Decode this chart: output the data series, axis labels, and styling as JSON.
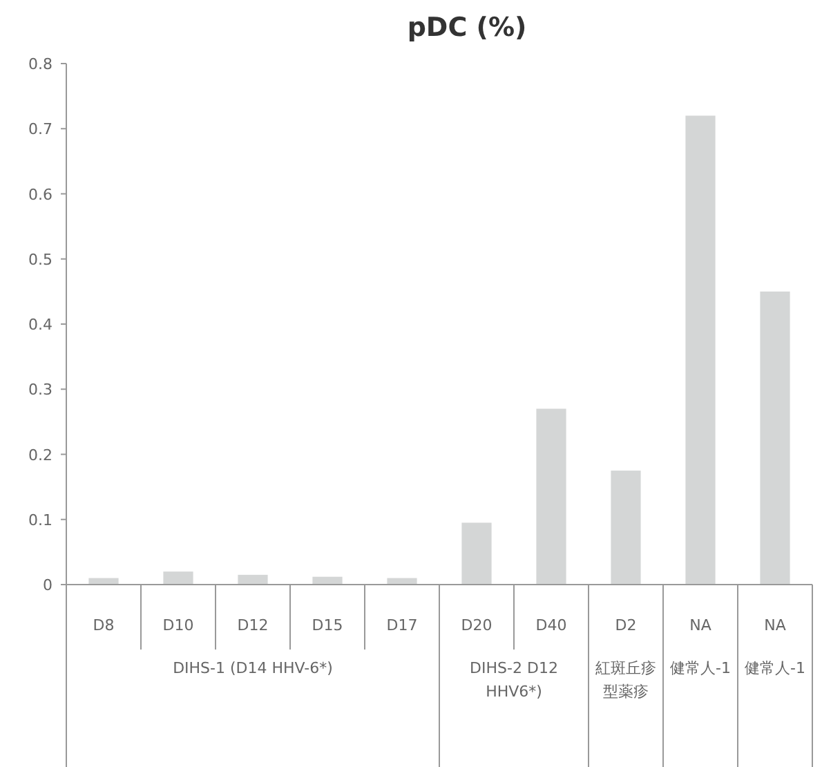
{
  "chart_data": {
    "type": "bar",
    "title": "pDC (%)",
    "categories": [
      "D8",
      "D10",
      "D12",
      "D15",
      "D17",
      "D20",
      "D40",
      "D2",
      "NA",
      "NA"
    ],
    "values": [
      0.01,
      0.02,
      0.015,
      0.012,
      0.01,
      0.095,
      0.27,
      0.175,
      0.72,
      0.45
    ],
    "color": "#d4d6d6",
    "ylim": [
      0,
      0.8
    ],
    "yticks": [
      0,
      0.1,
      0.2,
      0.3,
      0.4,
      0.5,
      0.6,
      0.7,
      0.8
    ],
    "annotations": [
      "DIHS-1 (D14 HHV-6*)",
      "DIHS-2 D12 HHV6*)",
      "紅斑丘疹型薬疹",
      "健常人-1",
      "健常人-1"
    ],
    "grid": false
  }
}
